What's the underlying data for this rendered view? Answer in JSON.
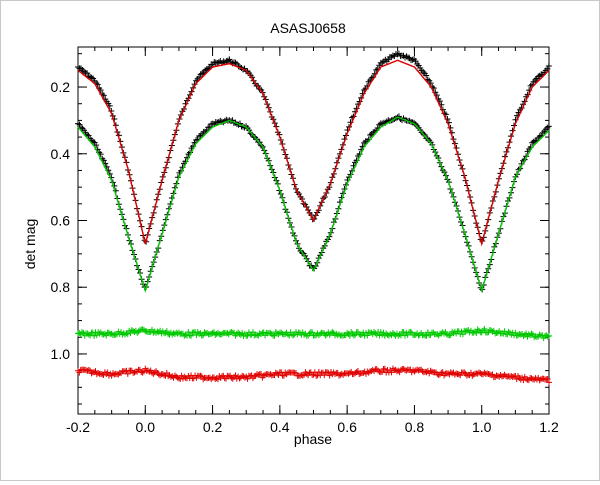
{
  "chart_data": {
    "type": "scatter",
    "title": "ASASJ0658",
    "xlabel": "phase",
    "ylabel": "det mag",
    "xlim": [
      -0.2,
      1.2
    ],
    "ylim": [
      0.08,
      1.18
    ],
    "y_inverted": true,
    "x_ticks": [
      -0.2,
      0.0,
      0.2,
      0.4,
      0.6,
      0.8,
      1.0,
      1.2
    ],
    "x_tick_labels": [
      "-0.2",
      "0.0",
      "0.2",
      "0.4",
      "0.6",
      "0.8",
      "1.0",
      "1.2"
    ],
    "y_ticks": [
      0.2,
      0.4,
      0.6,
      0.8,
      1.0
    ],
    "y_tick_labels": [
      "0.2",
      "0.4",
      "0.6",
      "0.8",
      "1.0"
    ],
    "grid": false,
    "series": [
      {
        "role": "observed light curve (primary)",
        "marker": "plus",
        "color": "#000000",
        "x": [
          -0.2,
          -0.15,
          -0.1,
          -0.05,
          0.0,
          0.05,
          0.1,
          0.15,
          0.2,
          0.25,
          0.3,
          0.35,
          0.4,
          0.45,
          0.5,
          0.55,
          0.6,
          0.65,
          0.7,
          0.75,
          0.8,
          0.85,
          0.9,
          0.95,
          1.0,
          1.05,
          1.1,
          1.15,
          1.2
        ],
        "y": [
          0.14,
          0.18,
          0.27,
          0.45,
          0.67,
          0.48,
          0.3,
          0.18,
          0.13,
          0.12,
          0.15,
          0.22,
          0.35,
          0.51,
          0.6,
          0.49,
          0.33,
          0.21,
          0.13,
          0.1,
          0.12,
          0.19,
          0.3,
          0.47,
          0.67,
          0.48,
          0.3,
          0.19,
          0.14
        ]
      },
      {
        "role": "model fit (primary)",
        "marker": "line",
        "color": "#e00000",
        "x": [
          -0.2,
          -0.15,
          -0.1,
          -0.05,
          0.0,
          0.05,
          0.1,
          0.15,
          0.2,
          0.25,
          0.3,
          0.35,
          0.4,
          0.45,
          0.5,
          0.55,
          0.6,
          0.65,
          0.7,
          0.75,
          0.8,
          0.85,
          0.9,
          0.95,
          1.0,
          1.05,
          1.1,
          1.15,
          1.2
        ],
        "y": [
          0.15,
          0.19,
          0.28,
          0.45,
          0.67,
          0.48,
          0.3,
          0.19,
          0.14,
          0.13,
          0.15,
          0.22,
          0.35,
          0.51,
          0.6,
          0.49,
          0.34,
          0.22,
          0.14,
          0.12,
          0.14,
          0.2,
          0.31,
          0.47,
          0.67,
          0.48,
          0.31,
          0.2,
          0.15
        ]
      },
      {
        "role": "observed light curve (offset)",
        "marker": "plus",
        "color": "#000000",
        "x": [
          -0.2,
          -0.15,
          -0.1,
          -0.05,
          0.0,
          0.05,
          0.1,
          0.15,
          0.2,
          0.25,
          0.3,
          0.35,
          0.4,
          0.45,
          0.5,
          0.55,
          0.6,
          0.65,
          0.7,
          0.75,
          0.8,
          0.85,
          0.9,
          0.95,
          1.0,
          1.05,
          1.1,
          1.15,
          1.2
        ],
        "y": [
          0.31,
          0.37,
          0.47,
          0.65,
          0.81,
          0.64,
          0.46,
          0.36,
          0.31,
          0.3,
          0.32,
          0.38,
          0.51,
          0.67,
          0.75,
          0.64,
          0.48,
          0.37,
          0.31,
          0.29,
          0.31,
          0.37,
          0.48,
          0.64,
          0.81,
          0.64,
          0.47,
          0.37,
          0.32
        ]
      },
      {
        "role": "model fit (offset)",
        "marker": "line",
        "color": "#00c800",
        "x": [
          -0.2,
          -0.15,
          -0.1,
          -0.05,
          0.0,
          0.05,
          0.1,
          0.15,
          0.2,
          0.25,
          0.3,
          0.35,
          0.4,
          0.45,
          0.5,
          0.55,
          0.6,
          0.65,
          0.7,
          0.75,
          0.8,
          0.85,
          0.9,
          0.95,
          1.0,
          1.05,
          1.1,
          1.15,
          1.2
        ],
        "y": [
          0.32,
          0.38,
          0.48,
          0.65,
          0.81,
          0.64,
          0.47,
          0.37,
          0.32,
          0.3,
          0.32,
          0.38,
          0.51,
          0.67,
          0.75,
          0.64,
          0.49,
          0.38,
          0.32,
          0.29,
          0.31,
          0.37,
          0.48,
          0.64,
          0.81,
          0.64,
          0.47,
          0.38,
          0.33
        ]
      },
      {
        "role": "residuals (offset)",
        "marker": "plus",
        "color": "#00c800",
        "x": [
          -0.2,
          -0.1,
          0.0,
          0.1,
          0.2,
          0.3,
          0.4,
          0.5,
          0.6,
          0.7,
          0.8,
          0.9,
          1.0,
          1.1,
          1.2
        ],
        "y": [
          0.94,
          0.94,
          0.93,
          0.94,
          0.94,
          0.94,
          0.94,
          0.94,
          0.94,
          0.94,
          0.94,
          0.94,
          0.93,
          0.94,
          0.95
        ]
      },
      {
        "role": "residuals (primary)",
        "marker": "plus",
        "color": "#e00000",
        "x": [
          -0.2,
          -0.1,
          0.0,
          0.1,
          0.2,
          0.3,
          0.4,
          0.5,
          0.6,
          0.7,
          0.8,
          0.9,
          1.0,
          1.1,
          1.2
        ],
        "y": [
          1.05,
          1.06,
          1.05,
          1.07,
          1.07,
          1.07,
          1.06,
          1.06,
          1.06,
          1.05,
          1.05,
          1.06,
          1.06,
          1.07,
          1.08
        ]
      }
    ]
  }
}
